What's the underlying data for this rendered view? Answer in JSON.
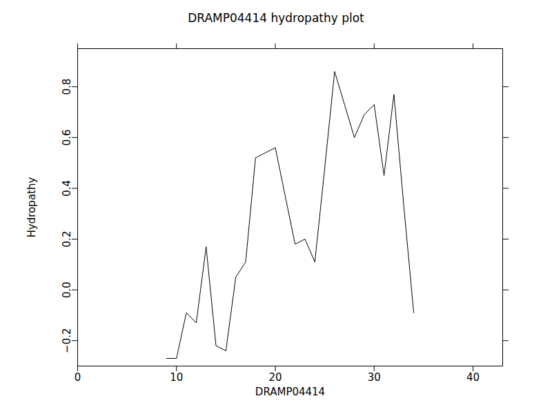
{
  "chart_data": {
    "type": "line",
    "title": "DRAMP04414 hydropathy plot",
    "x_label": "DRAMP04414",
    "y_label": "Hydropathy",
    "x": [
      9,
      10,
      11,
      12,
      13,
      14,
      15,
      16,
      17,
      18,
      19,
      20,
      21,
      22,
      23,
      24,
      25,
      26,
      27,
      28,
      29,
      30,
      31,
      32,
      33,
      34
    ],
    "values": [
      -0.27,
      -0.27,
      -0.09,
      -0.13,
      0.17,
      -0.22,
      -0.24,
      0.05,
      0.11,
      0.52,
      0.54,
      0.56,
      0.37,
      0.18,
      0.2,
      0.11,
      0.48,
      0.86,
      0.73,
      0.6,
      0.69,
      0.73,
      0.45,
      0.77,
      0.33,
      -0.09
    ],
    "color": "#000000",
    "xlim": [
      0,
      43
    ],
    "xticks": [
      0,
      10,
      20,
      30,
      40
    ],
    "ylim": [
      -0.3,
      0.95
    ],
    "yticks": [
      {
        "value": -0.2,
        "label": "−0.2"
      },
      {
        "value": 0,
        "label": "0.0"
      },
      0.2,
      0.4,
      0.6,
      0.8
    ],
    "grid": false
  }
}
